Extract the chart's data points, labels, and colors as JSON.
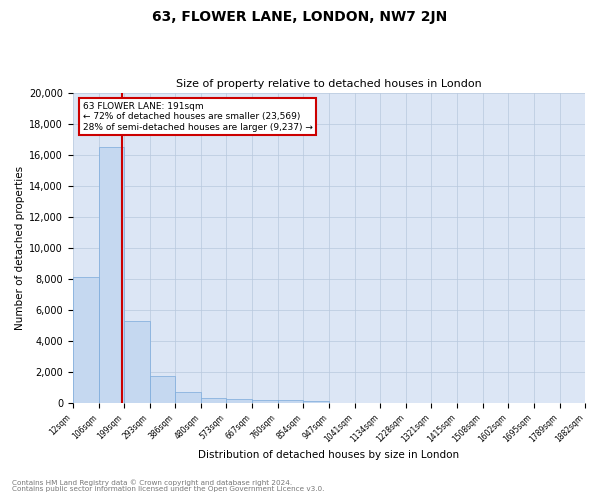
{
  "title": "63, FLOWER LANE, LONDON, NW7 2JN",
  "subtitle": "Size of property relative to detached houses in London",
  "xlabel": "Distribution of detached houses by size in London",
  "ylabel": "Number of detached properties",
  "footnote1": "Contains HM Land Registry data © Crown copyright and database right 2024.",
  "footnote2": "Contains public sector information licensed under the Open Government Licence v3.0.",
  "annotation_line1": "63 FLOWER LANE: 191sqm",
  "annotation_line2": "← 72% of detached houses are smaller (23,569)",
  "annotation_line3": "28% of semi-detached houses are larger (9,237) →",
  "bar_color": "#c5d8f0",
  "bar_edge_color": "#7aaadb",
  "marker_color": "#cc0000",
  "background_color": "#dce6f5",
  "bins": [
    12,
    106,
    199,
    293,
    386,
    480,
    573,
    667,
    760,
    854,
    947,
    1041,
    1134,
    1228,
    1321,
    1415,
    1508,
    1602,
    1695,
    1789,
    1882
  ],
  "bin_labels": [
    "12sqm",
    "106sqm",
    "199sqm",
    "293sqm",
    "386sqm",
    "480sqm",
    "573sqm",
    "667sqm",
    "760sqm",
    "854sqm",
    "947sqm",
    "1041sqm",
    "1134sqm",
    "1228sqm",
    "1321sqm",
    "1415sqm",
    "1508sqm",
    "1602sqm",
    "1695sqm",
    "1789sqm",
    "1882sqm"
  ],
  "bar_heights": [
    8100,
    16500,
    5300,
    1750,
    700,
    350,
    250,
    200,
    200,
    150,
    0,
    0,
    0,
    0,
    0,
    0,
    0,
    0,
    0,
    0
  ],
  "property_size": 191,
  "ylim": [
    0,
    20000
  ],
  "yticks": [
    0,
    2000,
    4000,
    6000,
    8000,
    10000,
    12000,
    14000,
    16000,
    18000,
    20000
  ],
  "annotation_box_color": "#ffffff",
  "annotation_box_edge": "#cc0000"
}
